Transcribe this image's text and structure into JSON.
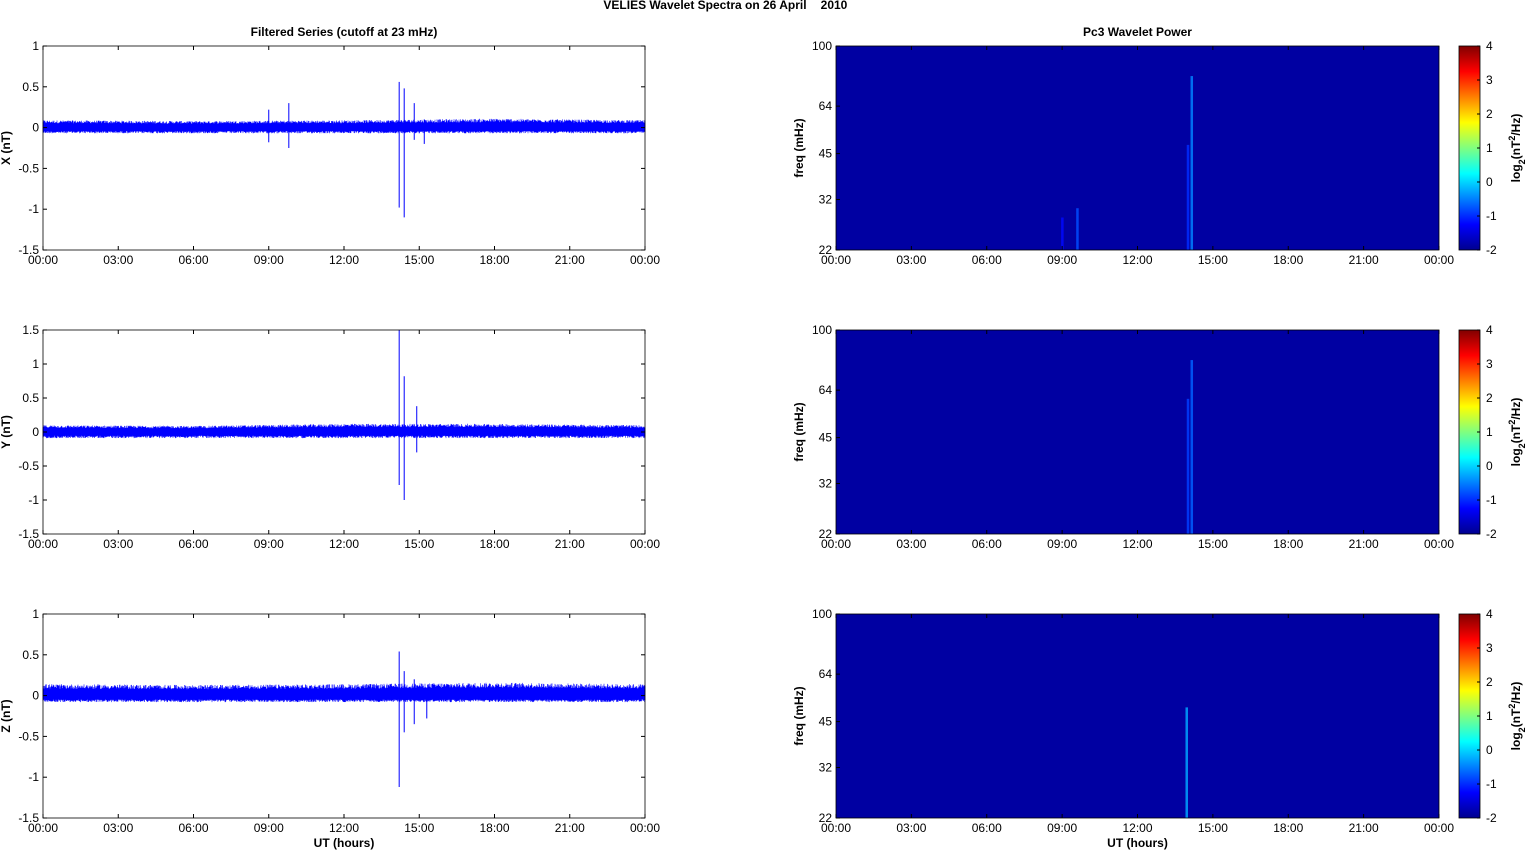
{
  "figure": {
    "title_left": "VELIES Wavelet Spectra on 26 April",
    "title_right": "2010"
  },
  "chart_data": [
    {
      "type": "line",
      "title": "Filtered Series (cutoff at 23 mHz)",
      "ylabel": "X (nT)",
      "xlabel": "",
      "xlim": [
        0,
        24
      ],
      "ylim": [
        -1.5,
        1
      ],
      "yticks": [
        -1.5,
        -1,
        -0.5,
        0,
        0.5,
        1
      ],
      "xticklabels": [
        "00:00",
        "03:00",
        "06:00",
        "09:00",
        "12:00",
        "15:00",
        "18:00",
        "21:00",
        "00:00"
      ],
      "color": "#0000ff",
      "noise_envelope": [
        {
          "x": 0,
          "min": -0.07,
          "max": 0.09
        },
        {
          "x": 6,
          "min": -0.07,
          "max": 0.08
        },
        {
          "x": 12,
          "min": -0.07,
          "max": 0.09
        },
        {
          "x": 18,
          "min": -0.07,
          "max": 0.11
        },
        {
          "x": 24,
          "min": -0.07,
          "max": 0.09
        }
      ],
      "spikes": [
        {
          "x": 9.0,
          "min": -0.18,
          "max": 0.22
        },
        {
          "x": 9.8,
          "min": -0.25,
          "max": 0.3
        },
        {
          "x": 14.2,
          "min": -0.98,
          "max": 0.56
        },
        {
          "x": 14.4,
          "min": -1.1,
          "max": 0.48
        },
        {
          "x": 14.8,
          "min": -0.15,
          "max": 0.3
        },
        {
          "x": 15.2,
          "min": -0.2,
          "max": 0.1
        }
      ]
    },
    {
      "type": "line",
      "title": "",
      "ylabel": "Y (nT)",
      "xlabel": "",
      "xlim": [
        0,
        24
      ],
      "ylim": [
        -1.5,
        1.5
      ],
      "yticks": [
        -1.5,
        -1,
        -0.5,
        0,
        0.5,
        1,
        1.5
      ],
      "xticklabels": [
        "00:00",
        "03:00",
        "06:00",
        "09:00",
        "12:00",
        "15:00",
        "18:00",
        "21:00",
        "00:00"
      ],
      "color": "#0000ff",
      "noise_envelope": [
        {
          "x": 0,
          "min": -0.09,
          "max": 0.1
        },
        {
          "x": 6,
          "min": -0.09,
          "max": 0.09
        },
        {
          "x": 12,
          "min": -0.09,
          "max": 0.12
        },
        {
          "x": 18,
          "min": -0.09,
          "max": 0.12
        },
        {
          "x": 24,
          "min": -0.09,
          "max": 0.1
        }
      ],
      "spikes": [
        {
          "x": 14.2,
          "min": -0.78,
          "max": 1.5
        },
        {
          "x": 14.4,
          "min": -1.0,
          "max": 0.82
        },
        {
          "x": 14.9,
          "min": -0.3,
          "max": 0.38
        }
      ]
    },
    {
      "type": "line",
      "title": "",
      "ylabel": "Z (nT)",
      "xlabel": "UT (hours)",
      "xlim": [
        0,
        24
      ],
      "ylim": [
        -1.5,
        1
      ],
      "yticks": [
        -1.5,
        -1,
        -0.5,
        0,
        0.5,
        1
      ],
      "xticklabels": [
        "00:00",
        "03:00",
        "06:00",
        "09:00",
        "12:00",
        "15:00",
        "18:00",
        "21:00",
        "00:00"
      ],
      "color": "#0000ff",
      "noise_envelope": [
        {
          "x": 0,
          "min": -0.08,
          "max": 0.14
        },
        {
          "x": 6,
          "min": -0.08,
          "max": 0.13
        },
        {
          "x": 12,
          "min": -0.08,
          "max": 0.14
        },
        {
          "x": 18,
          "min": -0.08,
          "max": 0.16
        },
        {
          "x": 24,
          "min": -0.08,
          "max": 0.14
        }
      ],
      "spikes": [
        {
          "x": 14.2,
          "min": -1.12,
          "max": 0.54
        },
        {
          "x": 14.4,
          "min": -0.45,
          "max": 0.3
        },
        {
          "x": 14.8,
          "min": -0.35,
          "max": 0.2
        },
        {
          "x": 15.3,
          "min": -0.28,
          "max": 0.1
        }
      ]
    },
    {
      "type": "heatmap",
      "title": "Pc3 Wavelet Power",
      "ylabel": "freq (mHz)",
      "xlabel": "",
      "xlim": [
        0,
        24
      ],
      "ylim": [
        22,
        100
      ],
      "yscale": "log",
      "yticks": [
        22,
        32,
        45,
        64,
        100
      ],
      "xticklabels": [
        "00:00",
        "03:00",
        "06:00",
        "09:00",
        "12:00",
        "15:00",
        "18:00",
        "21:00",
        "00:00"
      ],
      "background_level": -1.8,
      "colorbar": {
        "label": "log2(nT^2/Hz)",
        "range": [
          -2,
          4
        ],
        "ticks": [
          -2,
          -1,
          0,
          1,
          2,
          3,
          4
        ]
      },
      "features": [
        {
          "x": 9.0,
          "freq_top": 28,
          "level": -1.2
        },
        {
          "x": 9.6,
          "freq_top": 30,
          "level": -0.8
        },
        {
          "x": 14.0,
          "freq_top": 48,
          "level": -1.0
        },
        {
          "x": 14.15,
          "freq_top": 80,
          "level": -0.5
        }
      ]
    },
    {
      "type": "heatmap",
      "title": "",
      "ylabel": "freq (mHz)",
      "xlabel": "",
      "xlim": [
        0,
        24
      ],
      "ylim": [
        22,
        100
      ],
      "yscale": "log",
      "yticks": [
        22,
        32,
        45,
        64,
        100
      ],
      "xticklabels": [
        "00:00",
        "03:00",
        "06:00",
        "09:00",
        "12:00",
        "15:00",
        "18:00",
        "21:00",
        "00:00"
      ],
      "background_level": -1.8,
      "colorbar": {
        "label": "log2(nT^2/Hz)",
        "range": [
          -2,
          4
        ],
        "ticks": [
          -2,
          -1,
          0,
          1,
          2,
          3,
          4
        ]
      },
      "features": [
        {
          "x": 14.0,
          "freq_top": 60,
          "level": -0.9
        },
        {
          "x": 14.15,
          "freq_top": 80,
          "level": -0.7
        }
      ]
    },
    {
      "type": "heatmap",
      "title": "",
      "ylabel": "freq (mHz)",
      "xlabel": "UT (hours)",
      "xlim": [
        0,
        24
      ],
      "ylim": [
        22,
        100
      ],
      "yscale": "log",
      "yticks": [
        22,
        32,
        45,
        64,
        100
      ],
      "xticklabels": [
        "00:00",
        "03:00",
        "06:00",
        "09:00",
        "12:00",
        "15:00",
        "18:00",
        "21:00",
        "00:00"
      ],
      "background_level": -1.8,
      "colorbar": {
        "label": "log2(nT^2/Hz)",
        "range": [
          -2,
          4
        ],
        "ticks": [
          -2,
          -1,
          0,
          1,
          2,
          3,
          4
        ]
      },
      "features": [
        {
          "x": 13.95,
          "freq_top": 50,
          "level": -0.3
        }
      ]
    }
  ]
}
